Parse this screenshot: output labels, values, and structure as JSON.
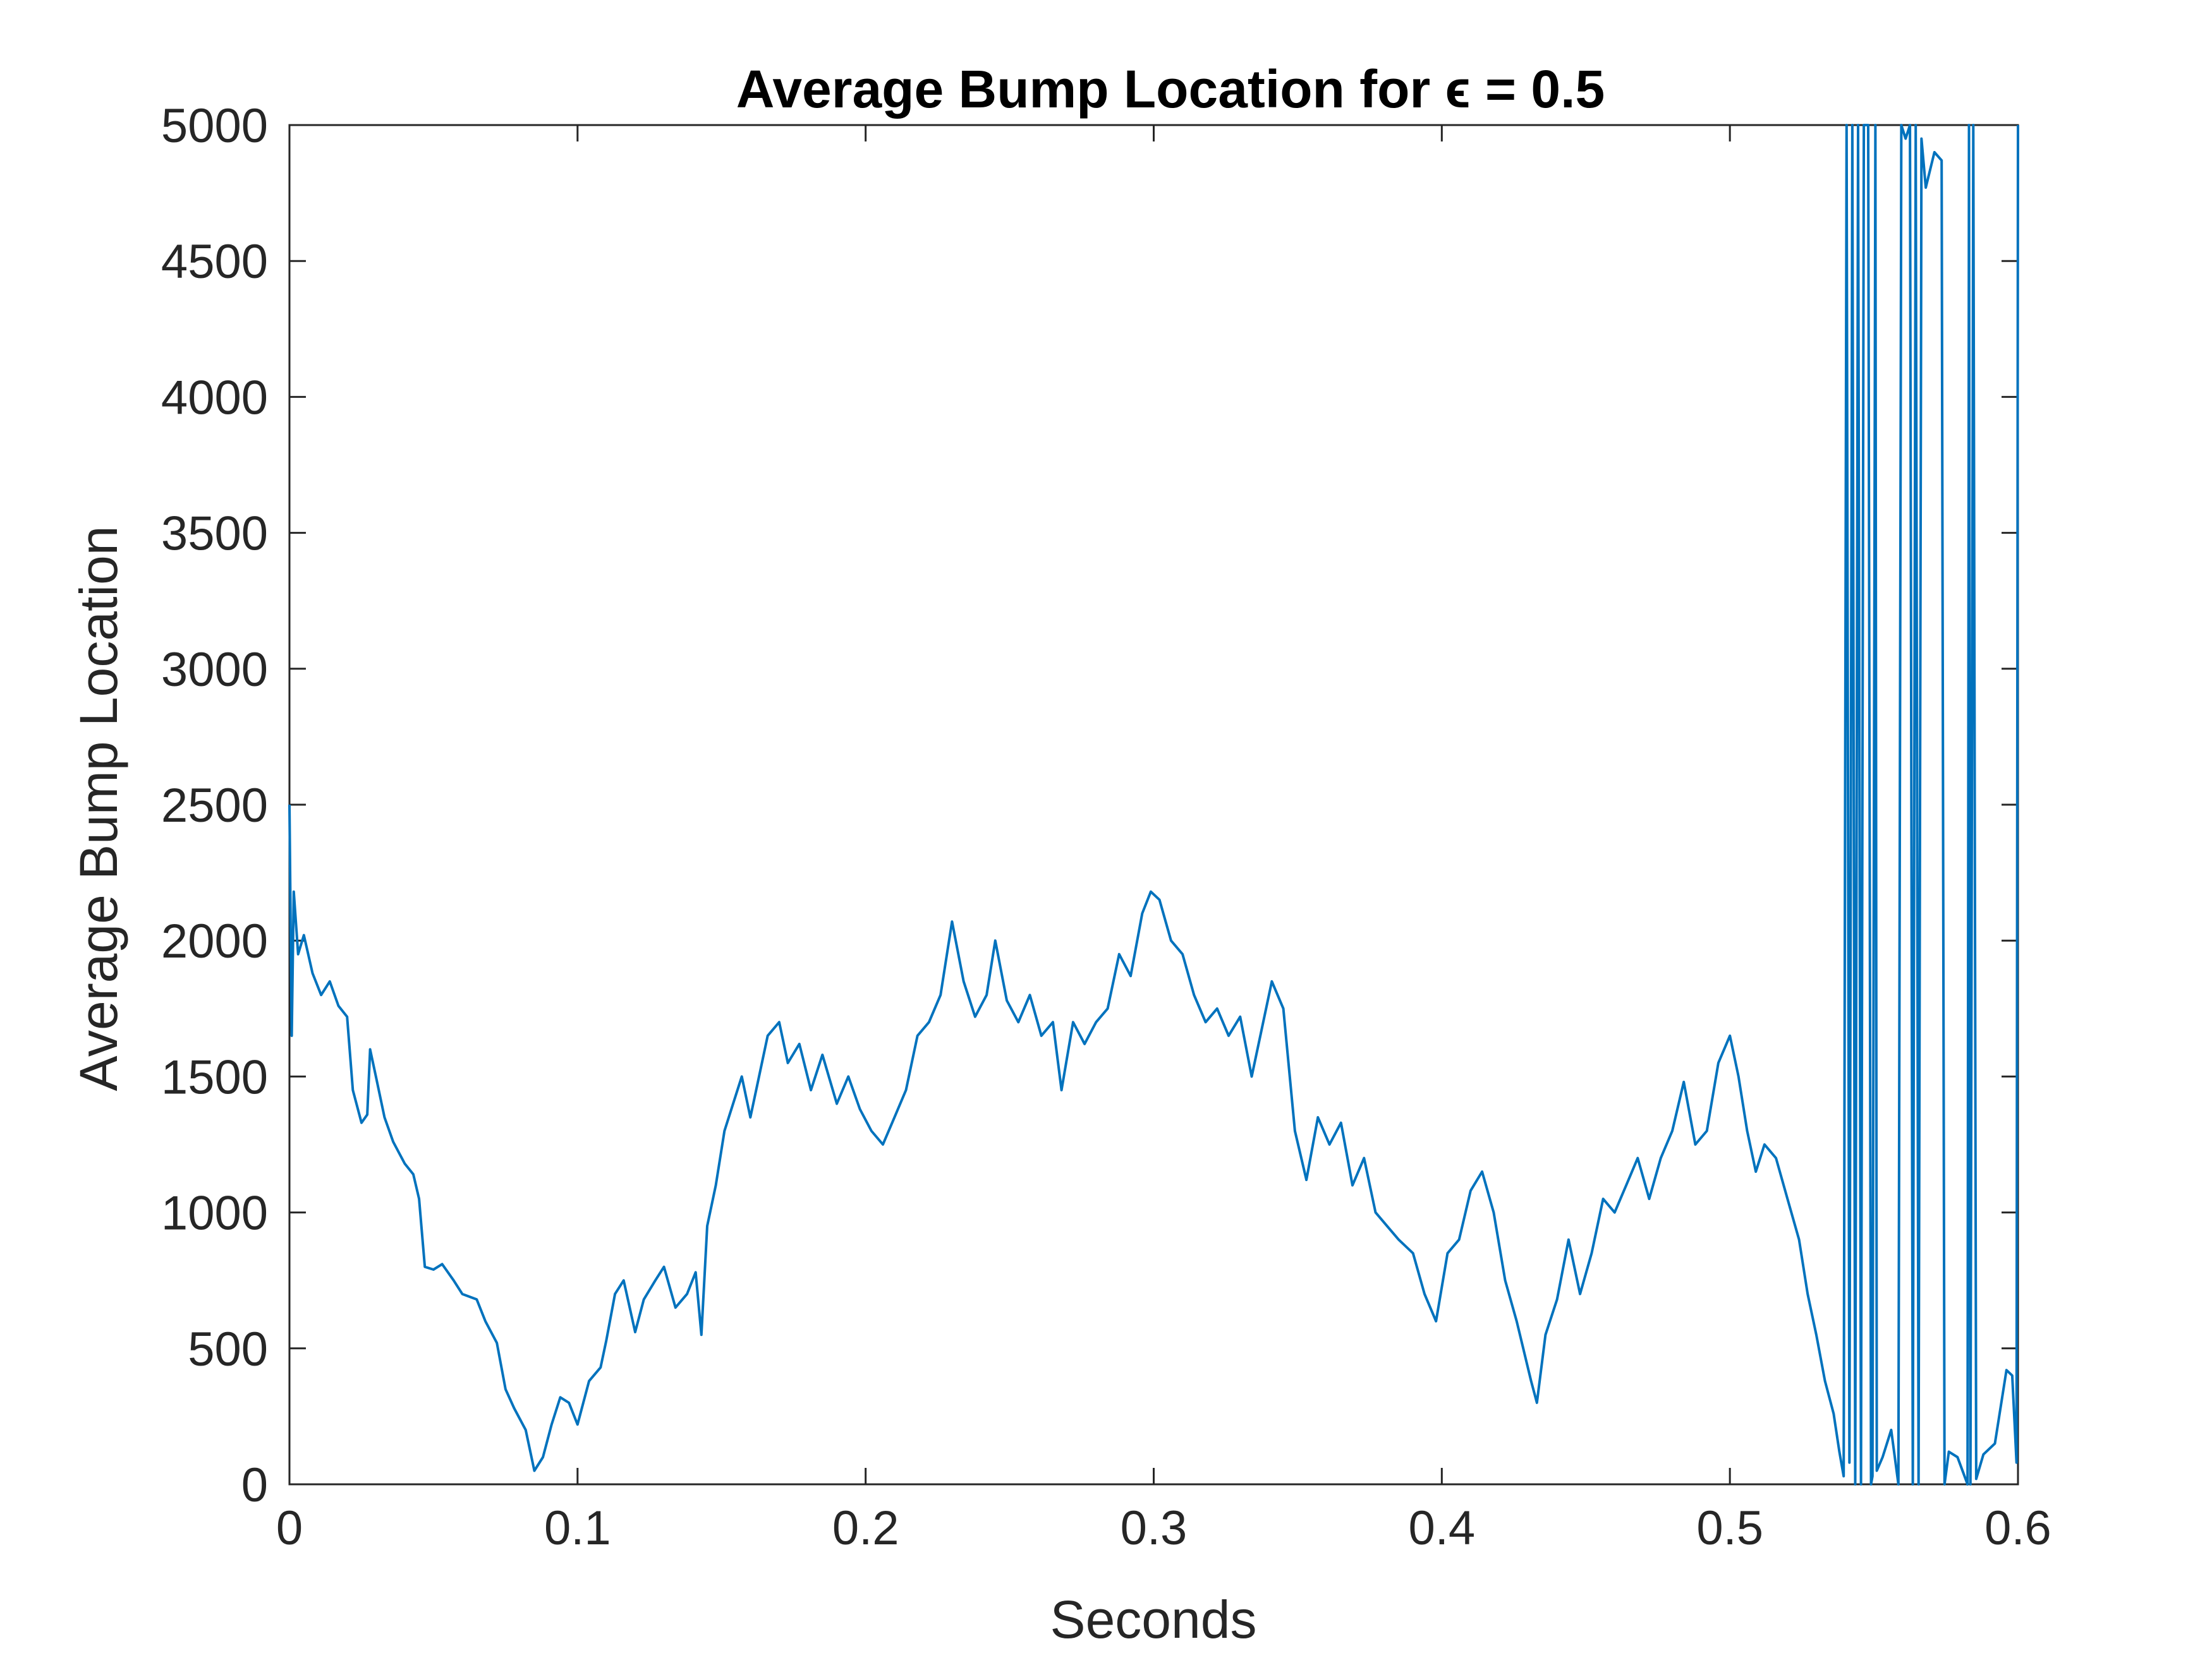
{
  "chart_data": {
    "type": "line",
    "title": "Average Bump Location for ϵ = 0.5",
    "xlabel": "Seconds",
    "ylabel": "Average Bump Location",
    "xlim": [
      0,
      0.6
    ],
    "ylim": [
      0,
      5000
    ],
    "xticks": [
      0,
      0.1,
      0.2,
      0.3,
      0.4,
      0.5,
      0.6
    ],
    "xtick_labels": [
      "0",
      "0.1",
      "0.2",
      "0.3",
      "0.4",
      "0.5",
      "0.6"
    ],
    "yticks": [
      0,
      500,
      1000,
      1500,
      2000,
      2500,
      3000,
      3500,
      4000,
      4500,
      5000
    ],
    "ytick_labels": [
      "0",
      "500",
      "1000",
      "1500",
      "2000",
      "2500",
      "3000",
      "3500",
      "4000",
      "4500",
      "5000"
    ],
    "grid": false,
    "legend": false,
    "line_color": "#0072BD",
    "series": [
      {
        "values": [
          [
            0.0,
            2500
          ],
          [
            0.0008,
            1650
          ],
          [
            0.0015,
            2180
          ],
          [
            0.003,
            1950
          ],
          [
            0.005,
            2020
          ],
          [
            0.008,
            1880
          ],
          [
            0.011,
            1800
          ],
          [
            0.014,
            1850
          ],
          [
            0.017,
            1760
          ],
          [
            0.02,
            1720
          ],
          [
            0.022,
            1450
          ],
          [
            0.025,
            1330
          ],
          [
            0.027,
            1360
          ],
          [
            0.028,
            1600
          ],
          [
            0.03,
            1500
          ],
          [
            0.033,
            1350
          ],
          [
            0.036,
            1260
          ],
          [
            0.04,
            1180
          ],
          [
            0.043,
            1140
          ],
          [
            0.045,
            1050
          ],
          [
            0.047,
            800
          ],
          [
            0.05,
            790
          ],
          [
            0.053,
            810
          ],
          [
            0.057,
            750
          ],
          [
            0.06,
            700
          ],
          [
            0.065,
            680
          ],
          [
            0.068,
            600
          ],
          [
            0.072,
            520
          ],
          [
            0.075,
            350
          ],
          [
            0.078,
            280
          ],
          [
            0.082,
            200
          ],
          [
            0.085,
            50
          ],
          [
            0.088,
            100
          ],
          [
            0.091,
            220
          ],
          [
            0.094,
            320
          ],
          [
            0.097,
            300
          ],
          [
            0.1,
            220
          ],
          [
            0.104,
            380
          ],
          [
            0.108,
            430
          ],
          [
            0.11,
            530
          ],
          [
            0.113,
            700
          ],
          [
            0.116,
            750
          ],
          [
            0.12,
            560
          ],
          [
            0.123,
            680
          ],
          [
            0.127,
            750
          ],
          [
            0.13,
            800
          ],
          [
            0.134,
            650
          ],
          [
            0.138,
            700
          ],
          [
            0.141,
            780
          ],
          [
            0.143,
            550
          ],
          [
            0.145,
            950
          ],
          [
            0.148,
            1100
          ],
          [
            0.151,
            1300
          ],
          [
            0.154,
            1400
          ],
          [
            0.157,
            1500
          ],
          [
            0.16,
            1350
          ],
          [
            0.163,
            1500
          ],
          [
            0.166,
            1650
          ],
          [
            0.17,
            1700
          ],
          [
            0.173,
            1550
          ],
          [
            0.177,
            1620
          ],
          [
            0.181,
            1450
          ],
          [
            0.185,
            1580
          ],
          [
            0.19,
            1400
          ],
          [
            0.194,
            1500
          ],
          [
            0.198,
            1380
          ],
          [
            0.202,
            1300
          ],
          [
            0.206,
            1250
          ],
          [
            0.21,
            1350
          ],
          [
            0.214,
            1450
          ],
          [
            0.218,
            1650
          ],
          [
            0.222,
            1700
          ],
          [
            0.226,
            1800
          ],
          [
            0.23,
            2070
          ],
          [
            0.234,
            1850
          ],
          [
            0.238,
            1720
          ],
          [
            0.242,
            1800
          ],
          [
            0.245,
            2000
          ],
          [
            0.249,
            1780
          ],
          [
            0.253,
            1700
          ],
          [
            0.257,
            1800
          ],
          [
            0.261,
            1650
          ],
          [
            0.265,
            1700
          ],
          [
            0.268,
            1450
          ],
          [
            0.272,
            1700
          ],
          [
            0.276,
            1620
          ],
          [
            0.28,
            1700
          ],
          [
            0.284,
            1750
          ],
          [
            0.288,
            1950
          ],
          [
            0.292,
            1870
          ],
          [
            0.296,
            2100
          ],
          [
            0.299,
            2180
          ],
          [
            0.302,
            2150
          ],
          [
            0.306,
            2000
          ],
          [
            0.31,
            1950
          ],
          [
            0.314,
            1800
          ],
          [
            0.318,
            1700
          ],
          [
            0.322,
            1750
          ],
          [
            0.326,
            1650
          ],
          [
            0.33,
            1720
          ],
          [
            0.334,
            1500
          ],
          [
            0.337,
            1650
          ],
          [
            0.341,
            1850
          ],
          [
            0.345,
            1750
          ],
          [
            0.349,
            1300
          ],
          [
            0.353,
            1120
          ],
          [
            0.357,
            1350
          ],
          [
            0.361,
            1250
          ],
          [
            0.365,
            1330
          ],
          [
            0.369,
            1100
          ],
          [
            0.373,
            1200
          ],
          [
            0.377,
            1000
          ],
          [
            0.381,
            950
          ],
          [
            0.385,
            900
          ],
          [
            0.39,
            850
          ],
          [
            0.394,
            700
          ],
          [
            0.398,
            600
          ],
          [
            0.402,
            850
          ],
          [
            0.406,
            900
          ],
          [
            0.41,
            1080
          ],
          [
            0.414,
            1150
          ],
          [
            0.418,
            1000
          ],
          [
            0.422,
            750
          ],
          [
            0.426,
            600
          ],
          [
            0.431,
            380
          ],
          [
            0.433,
            300
          ],
          [
            0.436,
            550
          ],
          [
            0.44,
            680
          ],
          [
            0.444,
            900
          ],
          [
            0.448,
            700
          ],
          [
            0.452,
            850
          ],
          [
            0.456,
            1050
          ],
          [
            0.46,
            1000
          ],
          [
            0.464,
            1100
          ],
          [
            0.468,
            1200
          ],
          [
            0.472,
            1050
          ],
          [
            0.476,
            1200
          ],
          [
            0.48,
            1300
          ],
          [
            0.484,
            1480
          ],
          [
            0.488,
            1250
          ],
          [
            0.492,
            1300
          ],
          [
            0.496,
            1550
          ],
          [
            0.5,
            1650
          ],
          [
            0.503,
            1500
          ],
          [
            0.506,
            1300
          ],
          [
            0.509,
            1150
          ],
          [
            0.512,
            1250
          ],
          [
            0.516,
            1200
          ],
          [
            0.52,
            1050
          ],
          [
            0.524,
            900
          ],
          [
            0.527,
            700
          ],
          [
            0.53,
            550
          ],
          [
            0.533,
            380
          ],
          [
            0.536,
            260
          ],
          [
            0.538,
            120
          ],
          [
            0.5395,
            30
          ],
          [
            0.5405,
            5000
          ],
          [
            0.5415,
            80
          ],
          [
            0.5425,
            5000
          ],
          [
            0.5435,
            0
          ],
          [
            0.5445,
            5000
          ],
          [
            0.5455,
            0
          ],
          [
            0.5465,
            5000
          ],
          [
            0.548,
            5000
          ],
          [
            0.549,
            0
          ],
          [
            0.5495,
            30
          ],
          [
            0.5505,
            5000
          ],
          [
            0.551,
            50
          ],
          [
            0.553,
            100
          ],
          [
            0.556,
            200
          ],
          [
            0.5585,
            0
          ],
          [
            0.5595,
            5000
          ],
          [
            0.561,
            4950
          ],
          [
            0.5625,
            5000
          ],
          [
            0.5635,
            0
          ],
          [
            0.5645,
            5000
          ],
          [
            0.5655,
            0
          ],
          [
            0.5665,
            4950
          ],
          [
            0.568,
            4770
          ],
          [
            0.571,
            4900
          ],
          [
            0.5735,
            4870
          ],
          [
            0.5745,
            0
          ],
          [
            0.576,
            120
          ],
          [
            0.579,
            100
          ],
          [
            0.5825,
            0
          ],
          [
            0.583,
            5000
          ],
          [
            0.5835,
            0
          ],
          [
            0.5845,
            5000
          ],
          [
            0.5855,
            20
          ],
          [
            0.588,
            110
          ],
          [
            0.592,
            150
          ],
          [
            0.596,
            420
          ],
          [
            0.598,
            400
          ],
          [
            0.5995,
            80
          ],
          [
            0.6,
            5000
          ]
        ]
      }
    ]
  }
}
